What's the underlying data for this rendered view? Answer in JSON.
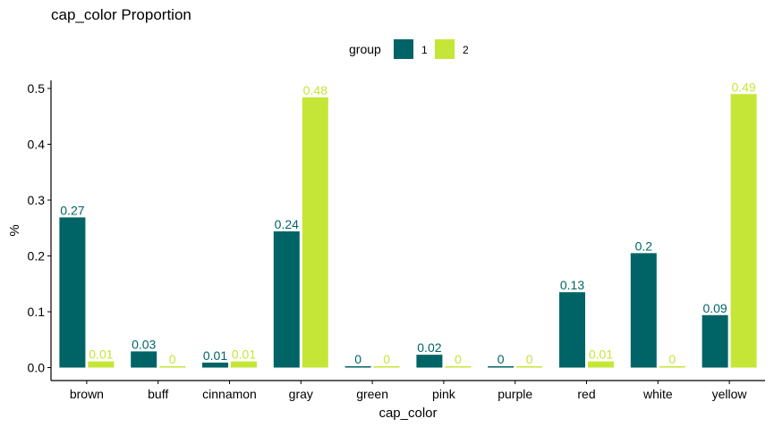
{
  "chart_data": {
    "type": "bar",
    "title": "cap_color Proportion",
    "xlabel": "cap_color",
    "ylabel": "%",
    "ylim": [
      -0.02,
      0.51
    ],
    "yticks": [
      "0.0",
      "0.1",
      "0.2",
      "0.3",
      "0.4",
      "0.5"
    ],
    "ytick_values": [
      0,
      0.1,
      0.2,
      0.3,
      0.4,
      0.5
    ],
    "legend": {
      "title": "group",
      "placement": "top"
    },
    "categories": [
      "brown",
      "buff",
      "cinnamon",
      "gray",
      "green",
      "pink",
      "purple",
      "red",
      "white",
      "yellow"
    ],
    "series": [
      {
        "name": "1",
        "color": "#006466",
        "values": [
          0.269,
          0.029,
          0.009,
          0.244,
          0.002,
          0.023,
          0.002,
          0.135,
          0.205,
          0.094
        ],
        "labels": [
          "0.27",
          "0.03",
          "0.01",
          "0.24",
          "0",
          "0.02",
          "0",
          "0.13",
          "0.2",
          "0.09"
        ]
      },
      {
        "name": "2",
        "color": "#c5e637",
        "values": [
          0.011,
          0.001,
          0.011,
          0.484,
          0.001,
          0.001,
          0.001,
          0.011,
          0.001,
          0.49
        ],
        "labels": [
          "0.01",
          "0",
          "0.01",
          "0.48",
          "0",
          "0",
          "0",
          "0.01",
          "0",
          "0.49"
        ]
      }
    ],
    "grid": false
  }
}
